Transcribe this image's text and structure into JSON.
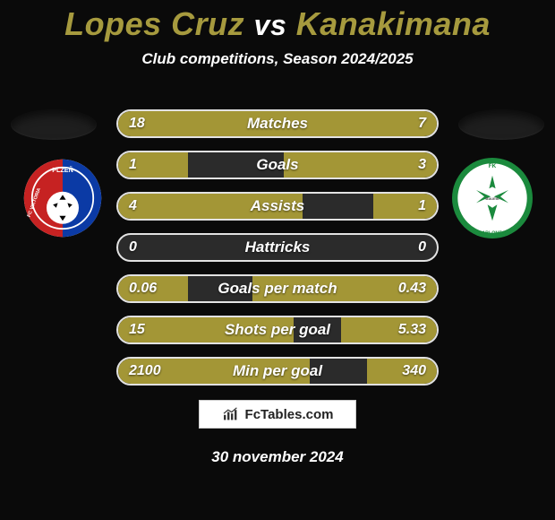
{
  "colors": {
    "background": "#0a0a0a",
    "accent": "#a39636",
    "title_accent": "#a69a3e",
    "bar_track": "#2b2b2b",
    "bar_border": "#e2e2e2",
    "text": "#ffffff"
  },
  "typography": {
    "title_fontsize": 36,
    "subtitle_fontsize": 17,
    "stat_label_fontsize": 17,
    "value_fontsize": 16,
    "italic": true,
    "bold": true
  },
  "header": {
    "player1": "Lopes Cruz",
    "vs": "vs",
    "player2": "Kanakimana",
    "subtitle": "Club competitions, Season 2024/2025"
  },
  "teams": {
    "left": {
      "name": "FC Viktoria Plzeň",
      "ring_colors": [
        "#c62222",
        "#0b3aa5"
      ],
      "text_color": "#ffffff"
    },
    "right": {
      "name": "FK Baumit Jablonec",
      "ring_color": "#1b8a3d",
      "center": "#ffffff"
    }
  },
  "stats": {
    "rows": [
      {
        "label": "Matches",
        "left": "18",
        "right": "7",
        "left_pct": 55,
        "right_pct": 45
      },
      {
        "label": "Goals",
        "left": "1",
        "right": "3",
        "left_pct": 22,
        "right_pct": 48
      },
      {
        "label": "Assists",
        "left": "4",
        "right": "1",
        "left_pct": 58,
        "right_pct": 20
      },
      {
        "label": "Hattricks",
        "left": "0",
        "right": "0",
        "left_pct": 0,
        "right_pct": 0
      },
      {
        "label": "Goals per match",
        "left": "0.06",
        "right": "0.43",
        "left_pct": 22,
        "right_pct": 58
      },
      {
        "label": "Shots per goal",
        "left": "15",
        "right": "5.33",
        "left_pct": 55,
        "right_pct": 30
      },
      {
        "label": "Min per goal",
        "left": "2100",
        "right": "340",
        "left_pct": 60,
        "right_pct": 22
      }
    ]
  },
  "watermark": {
    "label": "FcTables.com"
  },
  "footer": {
    "date": "30 november 2024"
  }
}
